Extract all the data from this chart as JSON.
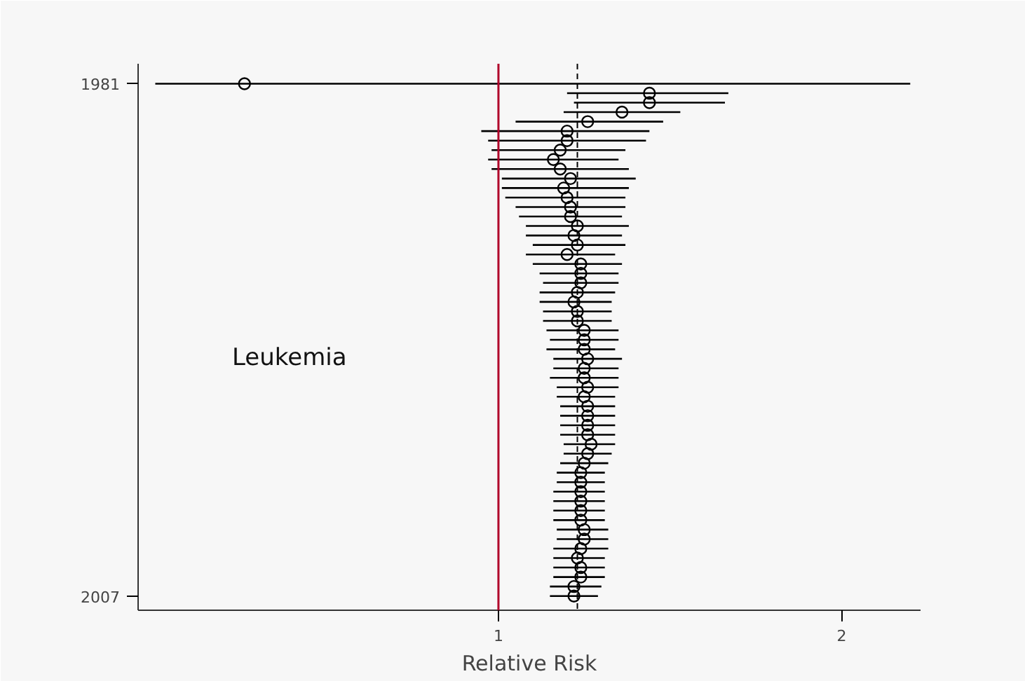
{
  "chart_data": {
    "type": "scatter",
    "orientation": "horizontal",
    "xlabel": "Relative Risk",
    "categories": [
      "1981",
      null,
      null,
      null,
      null,
      null,
      null,
      null,
      null,
      null,
      null,
      null,
      null,
      null,
      null,
      null,
      null,
      null,
      null,
      null,
      null,
      null,
      null,
      null,
      null,
      null,
      null,
      null,
      null,
      null,
      null,
      null,
      null,
      null,
      null,
      null,
      null,
      null,
      null,
      null,
      null,
      null,
      null,
      null,
      null,
      null,
      null,
      null,
      null,
      null,
      null,
      null,
      null,
      null,
      "2007"
    ],
    "values": [
      0.26,
      1.44,
      1.44,
      1.36,
      1.26,
      1.2,
      1.2,
      1.18,
      1.16,
      1.18,
      1.21,
      1.19,
      1.2,
      1.21,
      1.21,
      1.23,
      1.22,
      1.23,
      1.2,
      1.24,
      1.24,
      1.24,
      1.23,
      1.22,
      1.23,
      1.23,
      1.25,
      1.25,
      1.25,
      1.26,
      1.25,
      1.25,
      1.26,
      1.25,
      1.26,
      1.26,
      1.26,
      1.26,
      1.27,
      1.26,
      1.25,
      1.24,
      1.24,
      1.24,
      1.24,
      1.24,
      1.24,
      1.25,
      1.25,
      1.24,
      1.23,
      1.24,
      1.24,
      1.22,
      1.22
    ],
    "errors": [
      [
        0.0,
        2.2
      ],
      [
        1.2,
        1.67
      ],
      [
        1.22,
        1.66
      ],
      [
        1.19,
        1.53
      ],
      [
        1.05,
        1.48
      ],
      [
        0.95,
        1.44
      ],
      [
        0.97,
        1.43
      ],
      [
        0.98,
        1.37
      ],
      [
        0.97,
        1.35
      ],
      [
        0.98,
        1.38
      ],
      [
        1.01,
        1.4
      ],
      [
        1.01,
        1.38
      ],
      [
        1.02,
        1.37
      ],
      [
        1.05,
        1.37
      ],
      [
        1.06,
        1.36
      ],
      [
        1.08,
        1.38
      ],
      [
        1.08,
        1.36
      ],
      [
        1.1,
        1.37
      ],
      [
        1.08,
        1.34
      ],
      [
        1.1,
        1.36
      ],
      [
        1.12,
        1.35
      ],
      [
        1.13,
        1.35
      ],
      [
        1.12,
        1.34
      ],
      [
        1.12,
        1.33
      ],
      [
        1.13,
        1.33
      ],
      [
        1.13,
        1.33
      ],
      [
        1.14,
        1.35
      ],
      [
        1.15,
        1.35
      ],
      [
        1.14,
        1.34
      ],
      [
        1.16,
        1.36
      ],
      [
        1.16,
        1.35
      ],
      [
        1.15,
        1.35
      ],
      [
        1.17,
        1.35
      ],
      [
        1.17,
        1.34
      ],
      [
        1.18,
        1.34
      ],
      [
        1.18,
        1.34
      ],
      [
        1.18,
        1.34
      ],
      [
        1.18,
        1.34
      ],
      [
        1.19,
        1.34
      ],
      [
        1.19,
        1.33
      ],
      [
        1.18,
        1.32
      ],
      [
        1.17,
        1.31
      ],
      [
        1.17,
        1.31
      ],
      [
        1.16,
        1.31
      ],
      [
        1.16,
        1.31
      ],
      [
        1.16,
        1.31
      ],
      [
        1.16,
        1.31
      ],
      [
        1.17,
        1.32
      ],
      [
        1.17,
        1.32
      ],
      [
        1.16,
        1.32
      ],
      [
        1.16,
        1.31
      ],
      [
        1.16,
        1.31
      ],
      [
        1.16,
        1.31
      ],
      [
        1.15,
        1.3
      ],
      [
        1.15,
        1.29
      ]
    ],
    "color": "#000000",
    "marker": "circle",
    "xlim": [
      -0.05,
      2.23
    ],
    "xticks": [
      1,
      2
    ],
    "ref_lines": [
      {
        "axis": "x",
        "value": 1,
        "color": "#b0002a",
        "line_style": "solid"
      },
      {
        "axis": "x",
        "value": 1.23,
        "color": "#000000",
        "line_style": "dashed"
      }
    ],
    "annotations": [
      "Leukemia"
    ],
    "grid": false
  }
}
